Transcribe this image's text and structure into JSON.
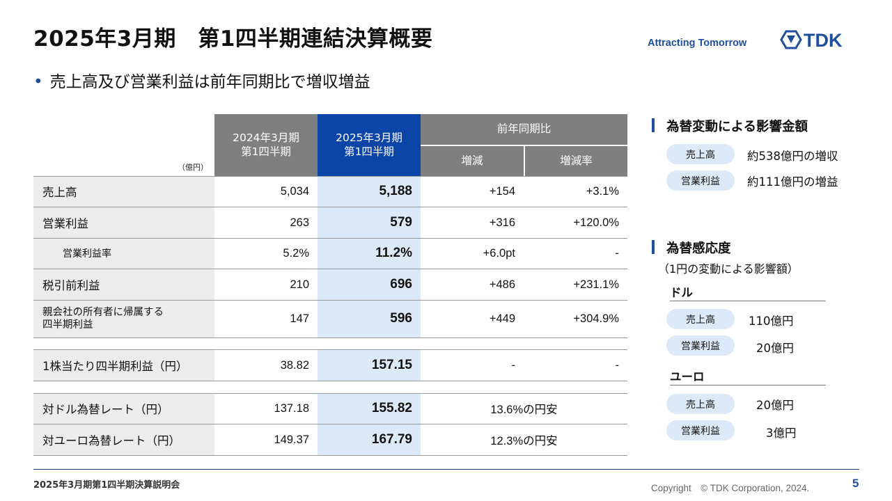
{
  "header": {
    "title": "2025年3月期　第1四半期連結決算概要",
    "tagline": "Attracting Tomorrow",
    "logo_text": "TDK"
  },
  "bullet": "売上高及び営業利益は前年同期比で増収増益",
  "table": {
    "unit": "（億円）",
    "col_prev": "2024年3月期\n第1四半期",
    "col_curr": "2025年3月期\n第1四半期",
    "col_yoy": "前年同期比",
    "col_change": "増減",
    "col_rate": "増減率",
    "rows": [
      {
        "label": "売上高",
        "prev": "5,034",
        "curr": "5,188",
        "change": "+154",
        "rate": "+3.1%"
      },
      {
        "label": "営業利益",
        "prev": "263",
        "curr": "579",
        "change": "+316",
        "rate": "+120.0%"
      },
      {
        "label": "営業利益率",
        "prev": "5.2%",
        "curr": "11.2%",
        "change": "+6.0pt",
        "rate": "-"
      },
      {
        "label": "税引前利益",
        "prev": "210",
        "curr": "696",
        "change": "+486",
        "rate": "+231.1%"
      },
      {
        "label": "親会社の所有者に帰属する\n四半期利益",
        "prev": "147",
        "curr": "596",
        "change": "+449",
        "rate": "+304.9%"
      },
      {
        "label": "1株当たり四半期利益（円）",
        "prev": "38.82",
        "curr": "157.15",
        "change": "-",
        "rate": "-"
      },
      {
        "label": "対ドル為替レート（円）",
        "prev": "137.18",
        "curr": "155.82",
        "note": "13.6%の円安"
      },
      {
        "label": "対ユーロ為替レート（円）",
        "prev": "149.37",
        "curr": "167.79",
        "note": "12.3%の円安"
      }
    ]
  },
  "fx_impact": {
    "title": "為替変動による影響金額",
    "items": [
      {
        "label": "売上高",
        "value": "約538億円の増収"
      },
      {
        "label": "営業利益",
        "value": "約111億円の増益"
      }
    ]
  },
  "fx_sensitivity": {
    "title": "為替感応度",
    "subtitle": "（1円の変動による影響額）",
    "usd": {
      "heading": "ドル",
      "items": [
        {
          "label": "売上高",
          "value": "110億円"
        },
        {
          "label": "営業利益",
          "value": "20億円"
        }
      ]
    },
    "eur": {
      "heading": "ユーロ",
      "items": [
        {
          "label": "売上高",
          "value": "20億円"
        },
        {
          "label": "営業利益",
          "value": "3億円"
        }
      ]
    }
  },
  "footer": {
    "left": "2025年3月期第1四半期決算説明会",
    "copyright": "Copyright　© TDK Corporation, 2024.",
    "page": "5"
  },
  "colors": {
    "accent": "#1f4e9c",
    "header_blue": "#0c45a8",
    "header_grey": "#7f7f7f",
    "highlight": "#dce9f8",
    "label_bg": "#ececec"
  }
}
